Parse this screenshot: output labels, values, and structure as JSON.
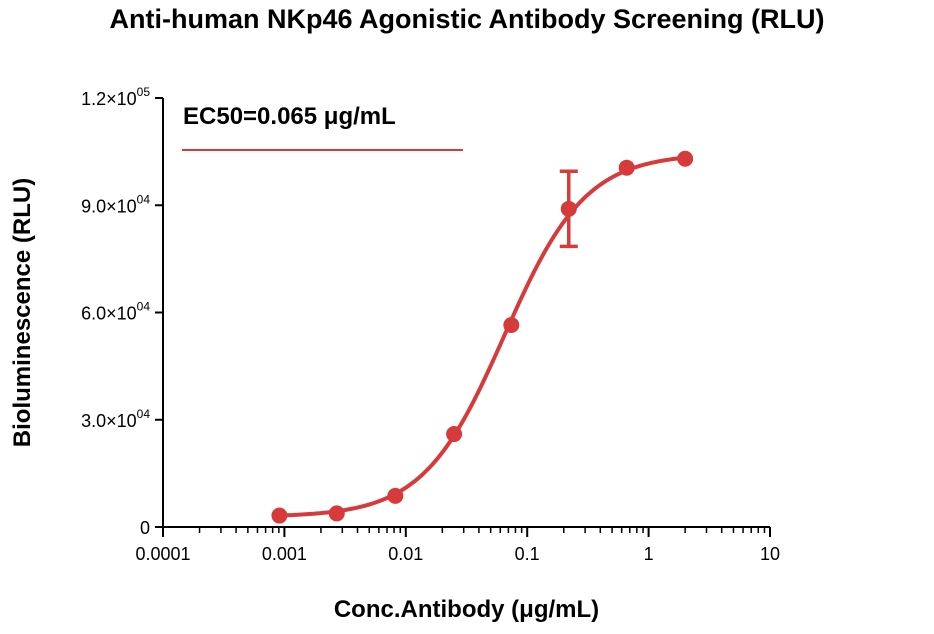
{
  "chart_data": {
    "type": "line",
    "title": "Anti-human NKp46 Agonistic Antibody Screening (RLU)",
    "xlabel": "Conc.Antibody (μg/mL)",
    "ylabel": "Bioluminescence (RLU)",
    "x_scale": "log",
    "xlim": [
      0.0001,
      10
    ],
    "ylim": [
      0,
      120000
    ],
    "x_ticks": [
      {
        "value": 0.0001,
        "label": "0.0001"
      },
      {
        "value": 0.001,
        "label": "0.001"
      },
      {
        "value": 0.01,
        "label": "0.01"
      },
      {
        "value": 0.1,
        "label": "0.1"
      },
      {
        "value": 1,
        "label": "1"
      },
      {
        "value": 10,
        "label": "10"
      }
    ],
    "y_ticks": [
      {
        "value": 0,
        "mant": "0",
        "exp": ""
      },
      {
        "value": 30000,
        "mant": "3.0×10",
        "exp": "04"
      },
      {
        "value": 60000,
        "mant": "6.0×10",
        "exp": "04"
      },
      {
        "value": 90000,
        "mant": "9.0×10",
        "exp": "04"
      },
      {
        "value": 120000,
        "mant": "1.2×10",
        "exp": "05"
      }
    ],
    "series": [
      {
        "color": "#d63a3a",
        "points": [
          {
            "x": 0.00091,
            "y": 3200
          },
          {
            "x": 0.0027,
            "y": 3800
          },
          {
            "x": 0.0082,
            "y": 8700
          },
          {
            "x": 0.025,
            "y": 26000
          },
          {
            "x": 0.074,
            "y": 56500
          },
          {
            "x": 0.22,
            "y": 89000,
            "err": 10500
          },
          {
            "x": 0.66,
            "y": 100500
          },
          {
            "x": 2.0,
            "y": 103000
          }
        ],
        "fit": {
          "bottom": 2800,
          "top": 104500,
          "ec50": 0.065,
          "hill": 1.3
        }
      }
    ],
    "annotation": "EC50=0.065 μg/mL",
    "legend_position": "top-left",
    "grid": false
  }
}
